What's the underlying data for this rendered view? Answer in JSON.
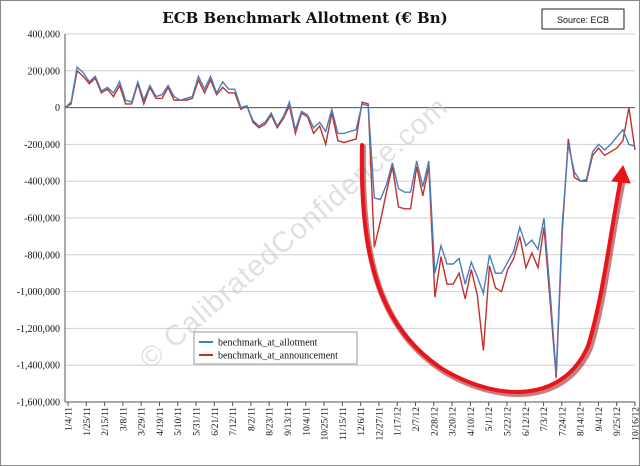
{
  "chart_data": {
    "type": "line",
    "title": "ECB Benchmark Allotment (€ Bn)",
    "source_note": "Source: ECB",
    "watermark": "© CalibratedConfidence.com",
    "xlabel": "",
    "ylabel": "",
    "ylim": [
      -1600000,
      400000
    ],
    "y_ticks": [
      "400,000",
      "200,000",
      "0",
      "-200,000",
      "-400,000",
      "-600,000",
      "-800,000",
      "-1,000,000",
      "-1,200,000",
      "-1,400,000",
      "-1,600,000"
    ],
    "x_tick_labels": [
      "1/4/11",
      "1/25/11",
      "2/15/11",
      "3/8/11",
      "3/29/11",
      "4/19/11",
      "5/10/11",
      "5/31/11",
      "6/21/11",
      "7/12/11",
      "8/2/11",
      "8/23/11",
      "9/13/11",
      "10/4/11",
      "10/25/11",
      "11/15/11",
      "12/6/11",
      "12/27/11",
      "1/17/12",
      "2/7/12",
      "2/28/12",
      "3/20/12",
      "4/10/12",
      "5/1/12",
      "5/22/12",
      "6/12/12",
      "7/3/12",
      "7/24/12",
      "8/14/12",
      "9/4/12",
      "9/25/12",
      "10/16/12"
    ],
    "grid": "horizontal",
    "legend_position": "lower-left",
    "colors": {
      "allotment": "#4a7ebb",
      "announcement": "#c0302c",
      "annotation": "#e8151b"
    },
    "series": [
      {
        "name": "benchmark_at_allotment",
        "values": [
          0,
          30,
          220,
          190,
          140,
          170,
          90,
          110,
          80,
          140,
          40,
          30,
          140,
          40,
          120,
          60,
          70,
          120,
          60,
          40,
          50,
          60,
          170,
          100,
          170,
          80,
          140,
          100,
          100,
          0,
          10,
          -70,
          -100,
          -80,
          -30,
          -100,
          -50,
          30,
          -120,
          -20,
          -40,
          -110,
          -80,
          -130,
          -10,
          -140,
          -140,
          -130,
          -120,
          20,
          10,
          -490,
          -500,
          -420,
          -300,
          -440,
          -460,
          -460,
          -290,
          -430,
          -290,
          -900,
          -750,
          -850,
          -850,
          -820,
          -960,
          -840,
          -920,
          -1010,
          -800,
          -900,
          -900,
          -840,
          -780,
          -650,
          -750,
          -720,
          -770,
          -600,
          -1000,
          -1450,
          -640,
          -200,
          -350,
          -400,
          -390,
          -240,
          -200,
          -230,
          -200,
          -160,
          -120,
          -200,
          -210
        ],
        "announcement_values": [
          0,
          20,
          200,
          170,
          130,
          160,
          80,
          100,
          60,
          120,
          20,
          20,
          130,
          20,
          110,
          50,
          50,
          110,
          40,
          40,
          40,
          50,
          150,
          80,
          150,
          70,
          110,
          80,
          80,
          -10,
          10,
          -80,
          -110,
          -90,
          -40,
          -110,
          -60,
          10,
          -140,
          -30,
          -50,
          -140,
          -100,
          -200,
          -30,
          -180,
          -190,
          -180,
          -170,
          30,
          20,
          -760,
          -620,
          -460,
          -320,
          -540,
          -550,
          -550,
          -320,
          -480,
          -320,
          -1030,
          -810,
          -960,
          -960,
          -900,
          -1040,
          -880,
          -1020,
          -1320,
          -860,
          -980,
          -1000,
          -880,
          -820,
          -700,
          -870,
          -790,
          -870,
          -650,
          -1050,
          -1470,
          -680,
          -170,
          -380,
          -400,
          -400,
          -260,
          -220,
          -260,
          -240,
          -220,
          -180,
          0,
          -230
        ],
        "values_unit": "thousands"
      },
      {
        "name": "benchmark_at_announcement"
      }
    ]
  }
}
